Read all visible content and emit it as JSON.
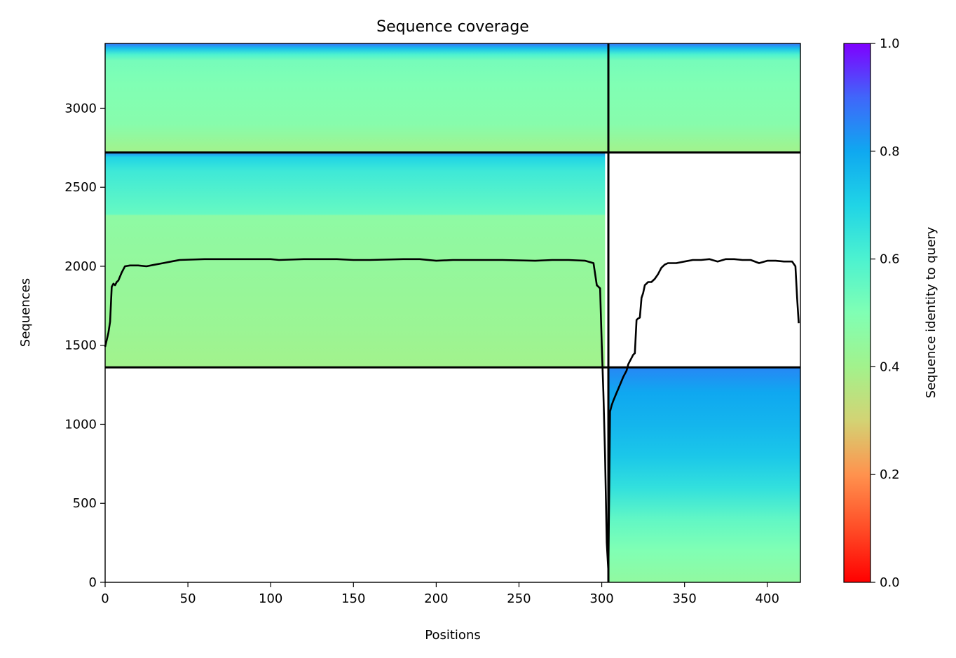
{
  "chart_data": {
    "type": "heatmap",
    "title": "Sequence coverage",
    "xlabel": "Positions",
    "ylabel": "Sequences",
    "xlim": [
      0,
      420
    ],
    "ylim": [
      0,
      3410
    ],
    "x_ticks": [
      0,
      50,
      100,
      150,
      200,
      250,
      300,
      350,
      400
    ],
    "y_ticks": [
      0,
      500,
      1000,
      1500,
      2000,
      2500,
      3000
    ],
    "grid": false,
    "colormap": "rainbow_r",
    "colorbar": {
      "label": "Sequence identity to query",
      "range": [
        0.0,
        1.0
      ],
      "ticks": [
        "0.0",
        "0.2",
        "0.4",
        "0.6",
        "0.8",
        "1.0"
      ]
    },
    "chain_boundaries": {
      "x": [
        304
      ],
      "y": [
        1360,
        2720
      ]
    },
    "blocks": [
      {
        "name": "top",
        "y_range": [
          2720,
          3410
        ],
        "identity_gradient": [
          [
            2720,
            0.4
          ],
          [
            2770,
            0.42
          ],
          [
            2900,
            0.48
          ],
          [
            3150,
            0.5
          ],
          [
            3300,
            0.52
          ],
          [
            3340,
            0.6
          ],
          [
            3380,
            0.75
          ],
          [
            3410,
            0.88
          ]
        ],
        "segments": [
          [
            0,
            304
          ],
          [
            304,
            420
          ]
        ]
      },
      {
        "name": "middle",
        "y_range": [
          1360,
          2720
        ],
        "identity_gradient": [
          [
            1360,
            0.4
          ],
          [
            1600,
            0.42
          ],
          [
            2000,
            0.44
          ],
          [
            2320,
            0.46
          ],
          [
            2330,
            0.55
          ],
          [
            2600,
            0.63
          ],
          [
            2690,
            0.7
          ],
          [
            2720,
            0.85
          ]
        ],
        "segments": [
          [
            0,
            302
          ]
        ]
      },
      {
        "name": "bottom",
        "y_range": [
          0,
          1360
        ],
        "identity_gradient": [
          [
            0,
            0.45
          ],
          [
            200,
            0.5
          ],
          [
            400,
            0.56
          ],
          [
            600,
            0.66
          ],
          [
            800,
            0.73
          ],
          [
            1000,
            0.77
          ],
          [
            1200,
            0.8
          ],
          [
            1360,
            0.85
          ]
        ],
        "segments": [
          [
            304,
            420
          ]
        ]
      }
    ],
    "coverage_line": {
      "color": "#000000",
      "x": [
        0,
        2,
        3,
        4,
        5,
        6,
        7,
        8,
        10,
        12,
        15,
        20,
        25,
        30,
        35,
        40,
        45,
        60,
        80,
        100,
        105,
        120,
        140,
        150,
        160,
        180,
        190,
        200,
        210,
        220,
        240,
        260,
        270,
        280,
        290,
        295,
        297,
        299,
        300,
        301,
        302,
        303,
        304,
        305,
        306,
        307,
        309,
        311,
        313,
        315,
        316,
        317,
        318,
        319,
        320,
        321,
        322,
        323,
        324,
        325,
        326,
        327,
        328,
        330,
        332,
        334,
        336,
        338,
        340,
        345,
        350,
        355,
        360,
        365,
        370,
        375,
        380,
        385,
        390,
        395,
        400,
        405,
        410,
        415,
        417,
        418,
        419
      ],
      "y": [
        1490,
        1580,
        1650,
        1870,
        1890,
        1880,
        1900,
        1910,
        1960,
        2000,
        2005,
        2005,
        2000,
        2010,
        2020,
        2030,
        2040,
        2045,
        2045,
        2045,
        2040,
        2045,
        2045,
        2040,
        2040,
        2045,
        2045,
        2035,
        2040,
        2040,
        2040,
        2035,
        2040,
        2040,
        2035,
        2020,
        1880,
        1860,
        1500,
        1200,
        800,
        250,
        70,
        1080,
        1120,
        1150,
        1200,
        1250,
        1300,
        1340,
        1380,
        1400,
        1420,
        1440,
        1450,
        1660,
        1670,
        1675,
        1800,
        1830,
        1880,
        1890,
        1900,
        1900,
        1920,
        1950,
        1990,
        2010,
        2020,
        2020,
        2030,
        2040,
        2040,
        2045,
        2030,
        2045,
        2045,
        2040,
        2040,
        2020,
        2035,
        2035,
        2030,
        2030,
        2000,
        1800,
        1640
      ]
    }
  }
}
